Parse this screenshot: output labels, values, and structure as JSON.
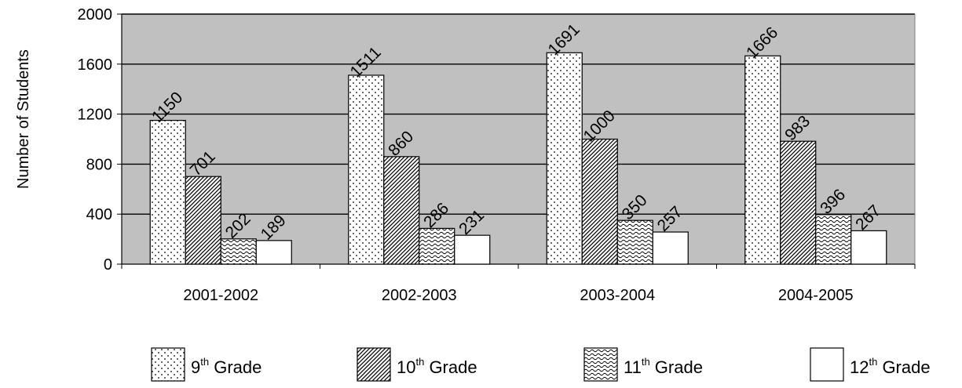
{
  "chart_data": {
    "type": "bar",
    "ylabel": "Number of Students",
    "ylim": [
      0,
      2000
    ],
    "yticks": [
      "0",
      "400",
      "800",
      "1200",
      "1600",
      "2000"
    ],
    "grid": true,
    "legend_position": "bottom",
    "categories": [
      "2001-2002",
      "2002-2003",
      "2003-2004",
      "2004-2005"
    ],
    "series": [
      {
        "name": "9th Grade",
        "label_num": "9",
        "label_sup": "th",
        "label_rest": " Grade",
        "pattern": "dots",
        "values": [
          1150,
          1511,
          1691,
          1666
        ]
      },
      {
        "name": "10th Grade",
        "label_num": "10",
        "label_sup": "th",
        "label_rest": " Grade",
        "pattern": "diagonal",
        "values": [
          701,
          860,
          1000,
          983
        ]
      },
      {
        "name": "11th Grade",
        "label_num": "11",
        "label_sup": "th",
        "label_rest": " Grade",
        "pattern": "wave",
        "values": [
          202,
          286,
          350,
          396
        ]
      },
      {
        "name": "12th Grade",
        "label_num": "12",
        "label_sup": "th",
        "label_rest": " Grade",
        "pattern": "solid",
        "values": [
          189,
          231,
          257,
          267
        ]
      }
    ],
    "colors": {
      "plot_background": "#c0c0c0",
      "bar_fill": "#ffffff",
      "stroke": "#000000"
    }
  }
}
